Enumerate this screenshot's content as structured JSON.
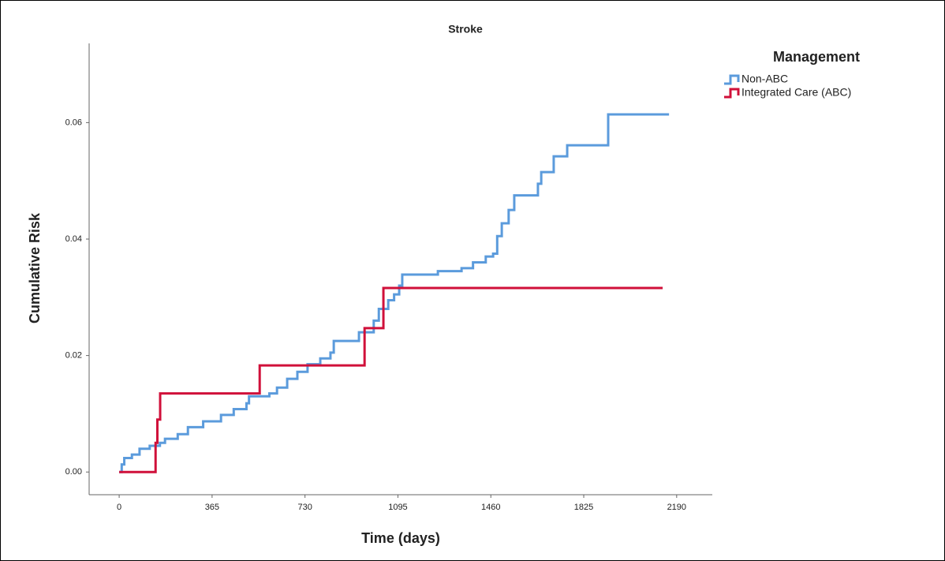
{
  "chart_data": {
    "type": "line",
    "step": "post",
    "title": "Stroke",
    "x_label": "Time (days)",
    "y_label": "Cumulative Risk",
    "legend_title": "Management",
    "legend_position": "right",
    "xlim": [
      -118,
      2330
    ],
    "ylim": [
      -0.0039,
      0.0736
    ],
    "xticks": [
      0,
      365,
      730,
      1095,
      1460,
      1825,
      2190
    ],
    "yticks": [
      {
        "value": 0,
        "label": "0.00"
      },
      {
        "value": 0.02,
        "label": "0.02"
      },
      {
        "value": 0.04,
        "label": "0.04"
      },
      {
        "value": 0.06,
        "label": "0.06"
      }
    ],
    "series": [
      {
        "name": "Non-ABC",
        "color": "#5b9bdc",
        "x": [
          0,
          10,
          20,
          50,
          80,
          120,
          160,
          180,
          230,
          270,
          330,
          400,
          450,
          500,
          510,
          590,
          620,
          660,
          700,
          740,
          790,
          830,
          843,
          942,
          1000,
          1020,
          1057,
          1080,
          1100,
          1112,
          1252,
          1345,
          1390,
          1440,
          1469,
          1485,
          1503,
          1530,
          1552,
          1645,
          1658,
          1707,
          1760,
          1921,
          2160
        ],
        "values": [
          0,
          0.0013,
          0.0024,
          0.003,
          0.004,
          0.0045,
          0.005,
          0.0057,
          0.0065,
          0.0077,
          0.0087,
          0.0098,
          0.0108,
          0.0118,
          0.013,
          0.0135,
          0.0145,
          0.016,
          0.0172,
          0.0185,
          0.0195,
          0.0205,
          0.0225,
          0.024,
          0.026,
          0.028,
          0.0295,
          0.0305,
          0.032,
          0.0339,
          0.0345,
          0.035,
          0.036,
          0.037,
          0.0375,
          0.0405,
          0.0427,
          0.045,
          0.0475,
          0.0495,
          0.0515,
          0.0542,
          0.0561,
          0.0614,
          0.0614
        ]
      },
      {
        "name": "Integrated Care (ABC)",
        "color": "#d0103a",
        "x": [
          0,
          143,
          150,
          161,
          552,
          964,
          1038,
          2135
        ],
        "values": [
          0,
          0.005,
          0.009,
          0.0135,
          0.0183,
          0.0247,
          0.0316,
          0.0316
        ]
      }
    ]
  }
}
